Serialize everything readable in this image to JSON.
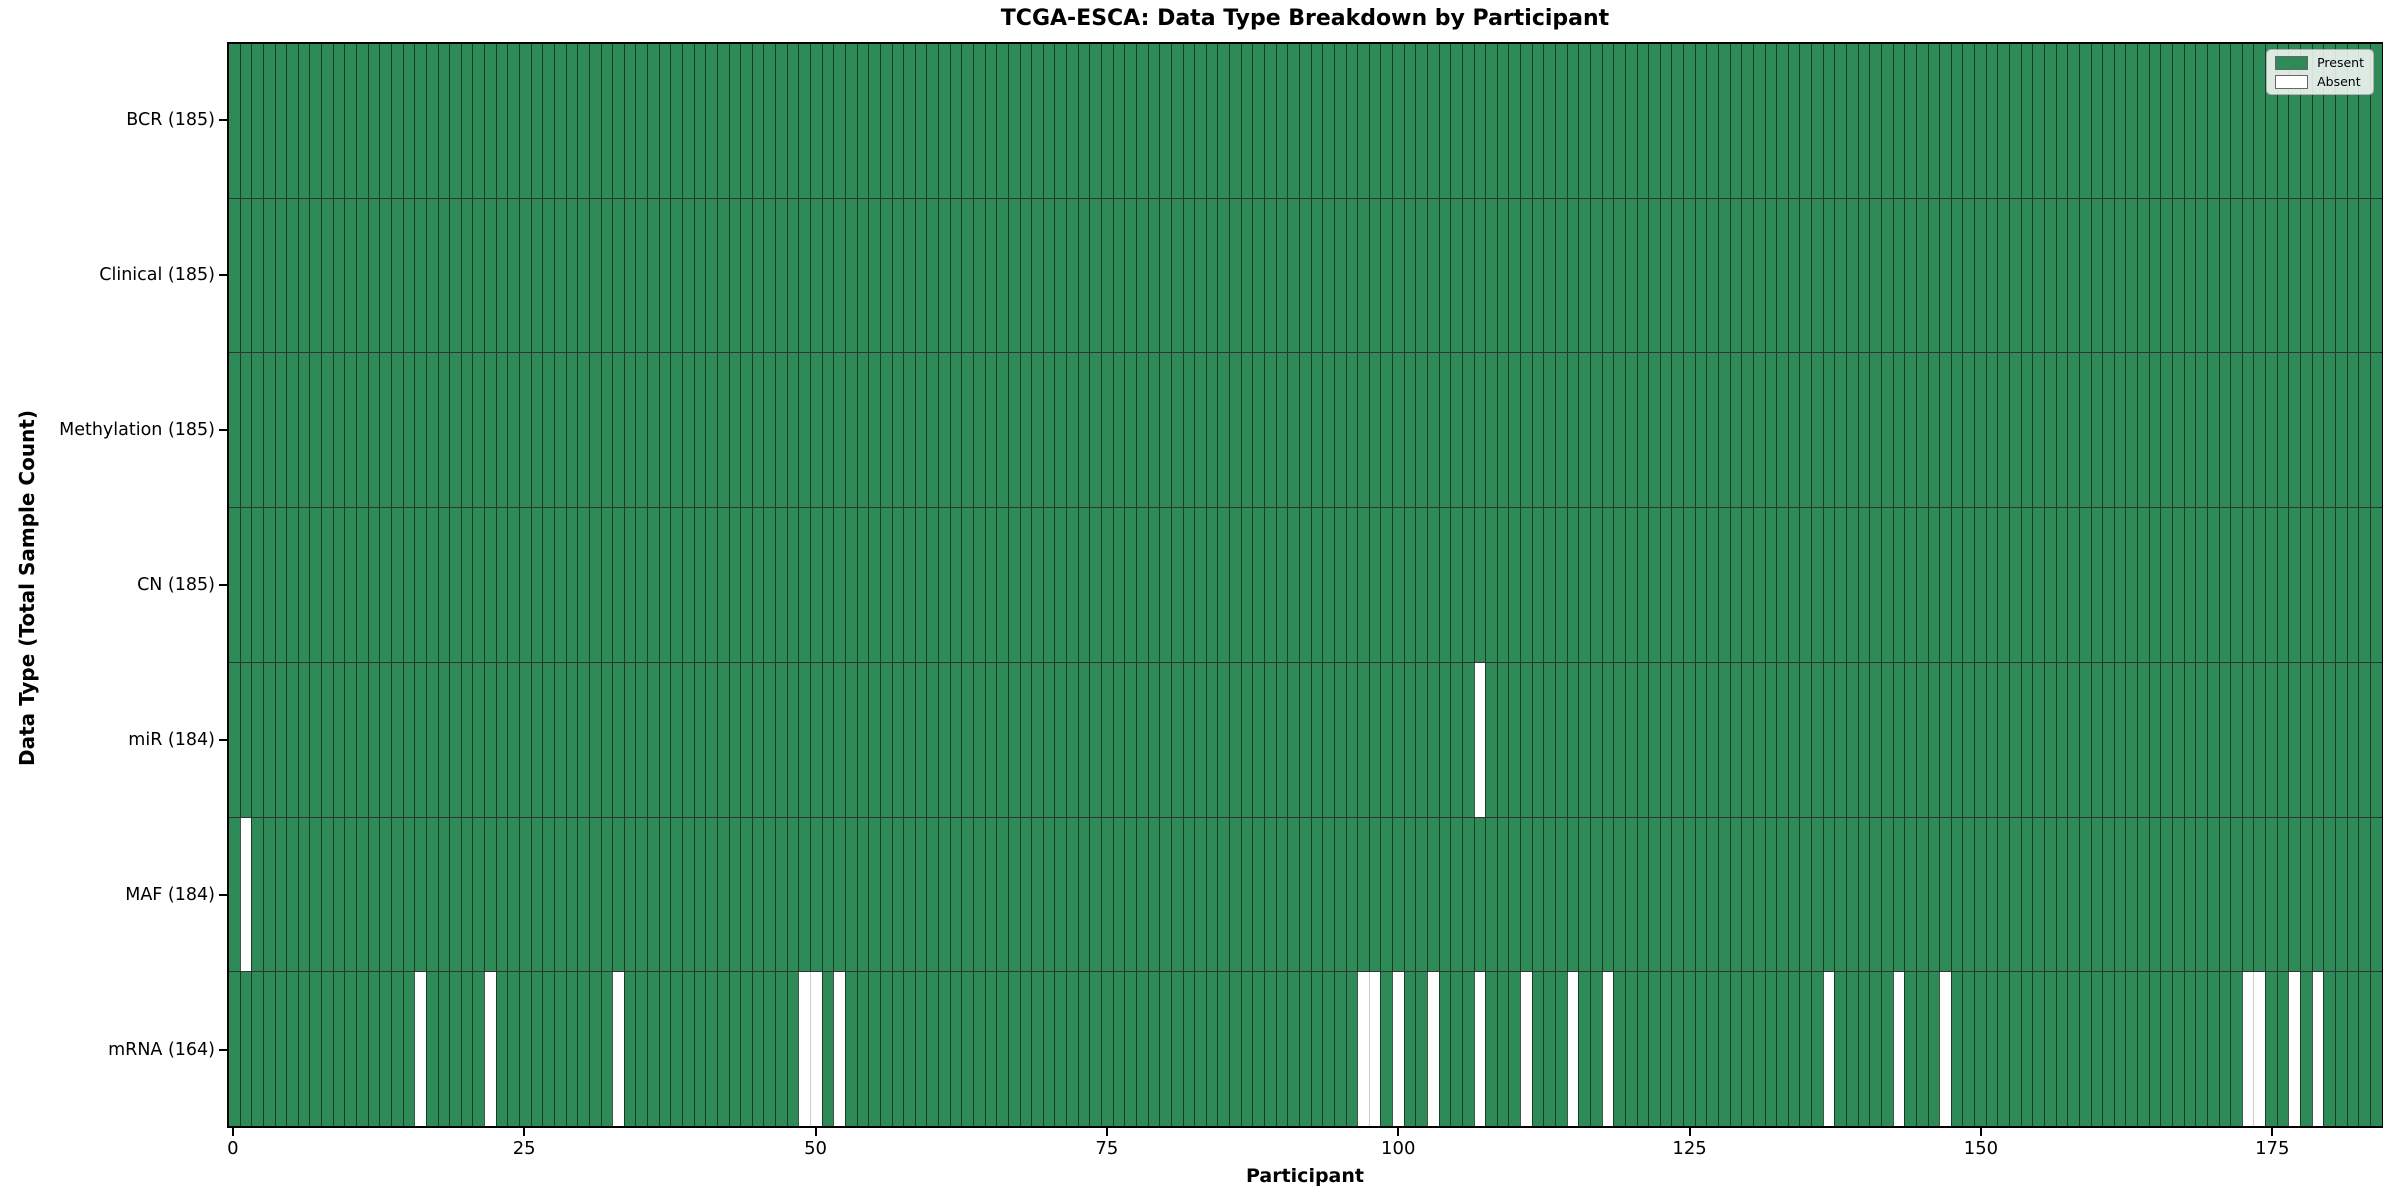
{
  "title": "TCGA-ESCA: Data Type Breakdown by Participant",
  "chart_data": {
    "type": "heatmap",
    "title": "TCGA-ESCA: Data Type Breakdown by Participant",
    "xlabel": "Participant",
    "ylabel": "Data Type (Total Sample Count)",
    "n_participants": 185,
    "x_ticks": [
      0,
      25,
      50,
      75,
      100,
      125,
      150,
      175
    ],
    "value_legend": {
      "present": 1,
      "absent": 0
    },
    "rows": [
      {
        "label": "BCR (185)",
        "data_type": "BCR",
        "present_count": 185,
        "absent_participants": []
      },
      {
        "label": "Clinical (185)",
        "data_type": "Clinical",
        "present_count": 185,
        "absent_participants": []
      },
      {
        "label": "Methylation (185)",
        "data_type": "Methylation",
        "present_count": 185,
        "absent_participants": []
      },
      {
        "label": "CN (185)",
        "data_type": "CN",
        "present_count": 185,
        "absent_participants": []
      },
      {
        "label": "miR (184)",
        "data_type": "miR",
        "present_count": 184,
        "absent_participants": [
          107
        ]
      },
      {
        "label": "MAF (184)",
        "data_type": "MAF",
        "present_count": 184,
        "absent_participants": [
          1
        ]
      },
      {
        "label": "mRNA (164)",
        "data_type": "mRNA",
        "present_count": 164,
        "absent_participants": [
          16,
          22,
          33,
          49,
          50,
          52,
          97,
          98,
          100,
          103,
          107,
          111,
          115,
          118,
          137,
          143,
          147,
          173,
          174,
          177,
          179
        ]
      }
    ],
    "legend": [
      {
        "label": "Present",
        "color": "#2e8b57"
      },
      {
        "label": "Absent",
        "color": "#ffffff"
      }
    ],
    "colors": {
      "present": "#2e8b57",
      "absent": "#ffffff",
      "cell_edge": "#102a1c",
      "spine": "#000000"
    },
    "legend_position": "upper right",
    "grid": false
  }
}
